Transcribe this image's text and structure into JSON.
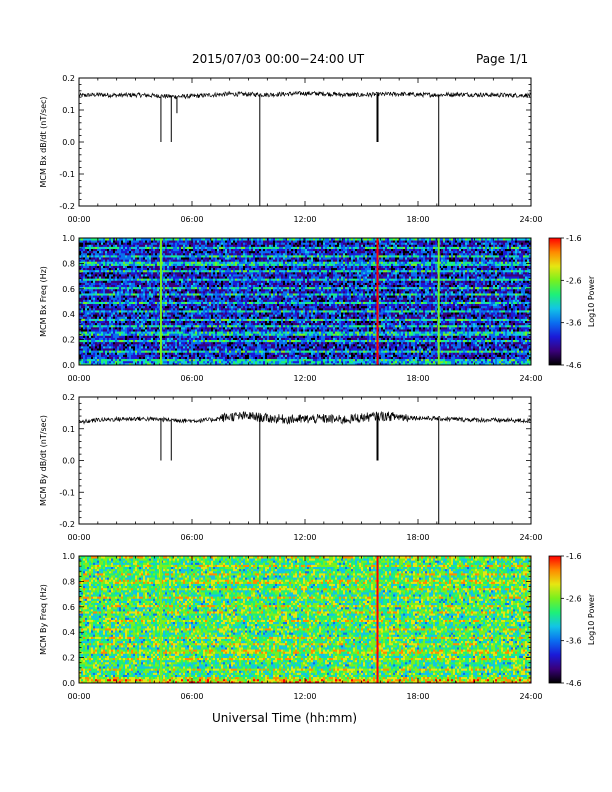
{
  "header": {
    "title": "2015/07/03  00:00−24:00 UT",
    "page": "Page 1/1"
  },
  "x_axis_title": "Universal Time (hh:mm)",
  "colors": {
    "trace": "#000000",
    "scale": [
      "#000000",
      "#3a007a",
      "#1a1ad8",
      "#0a6ef0",
      "#12c4e6",
      "#1ef078",
      "#78f01e",
      "#e6e612",
      "#ff8a00",
      "#ff0000"
    ]
  },
  "chart_data": [
    {
      "type": "line",
      "ylabel": "MCM Bx dB/dt (nT/sec)",
      "xlim": [
        0,
        24
      ],
      "ylim": [
        -0.2,
        0.2
      ],
      "x_ticks": [
        "00:00",
        "06:00",
        "12:00",
        "18:00",
        "24:00"
      ],
      "y_ticks": [
        "-0.2",
        "-0.1",
        "0.0",
        "0.1",
        "0.2"
      ],
      "series": [
        {
          "x": [
            0,
            1,
            2,
            3,
            4,
            5,
            6,
            7,
            8,
            9,
            10,
            11,
            12,
            13,
            14,
            15,
            16,
            17,
            18,
            19,
            20,
            21,
            22,
            23,
            24
          ],
          "y": [
            0.145,
            0.148,
            0.146,
            0.147,
            0.145,
            0.142,
            0.143,
            0.147,
            0.15,
            0.149,
            0.148,
            0.15,
            0.152,
            0.151,
            0.148,
            0.147,
            0.149,
            0.15,
            0.148,
            0.147,
            0.149,
            0.148,
            0.147,
            0.146,
            0.146
          ]
        }
      ],
      "spikes": [
        {
          "x": 4.35,
          "y": 0.0
        },
        {
          "x": 4.9,
          "y": 0.0
        },
        {
          "x": 5.2,
          "y": 0.09
        },
        {
          "x": 9.6,
          "y": -0.2
        },
        {
          "x": 15.85,
          "y": 0.0
        },
        {
          "x": 19.1,
          "y": -0.2
        }
      ]
    },
    {
      "type": "heatmap",
      "ylabel": "MCM Bx Freq (Hz)",
      "xlim": [
        0,
        24
      ],
      "ylim": [
        0,
        1.0
      ],
      "x_ticks": [
        "00:00",
        "06:00",
        "12:00",
        "18:00",
        "24:00"
      ],
      "y_ticks": [
        "0.0",
        "0.2",
        "0.4",
        "0.6",
        "0.8",
        "1.0"
      ],
      "colorbar": {
        "label": "Log10 Power",
        "ticks": [
          "-1.6",
          "-2.6",
          "-3.6",
          "-4.6"
        ],
        "range": [
          -4.6,
          -1.6
        ]
      },
      "band_freqs": [
        0.038,
        0.115,
        0.185,
        0.25,
        0.305,
        0.365,
        0.425,
        0.49,
        0.555,
        0.615,
        0.675,
        0.74,
        0.8,
        0.86,
        0.92,
        0.985
      ],
      "background_log_power": -3.9,
      "band_log_power": -3.2,
      "line_events": [
        {
          "x": 4.35,
          "log_power": -2.8
        },
        {
          "x": 15.85,
          "log_power": -1.6
        },
        {
          "x": 19.1,
          "log_power": -2.6
        }
      ]
    },
    {
      "type": "line",
      "ylabel": "MCM By dB/dt (nT/sec)",
      "xlim": [
        0,
        24
      ],
      "ylim": [
        -0.2,
        0.2
      ],
      "x_ticks": [
        "00:00",
        "06:00",
        "12:00",
        "18:00",
        "24:00"
      ],
      "y_ticks": [
        "-0.2",
        "-0.1",
        "0.0",
        "0.1",
        "0.2"
      ],
      "series": [
        {
          "x": [
            0,
            1,
            2,
            3,
            4,
            5,
            6,
            7,
            8,
            9,
            10,
            11,
            12,
            13,
            14,
            15,
            16,
            17,
            18,
            19,
            20,
            21,
            22,
            23,
            24
          ],
          "y": [
            0.12,
            0.128,
            0.13,
            0.132,
            0.13,
            0.128,
            0.125,
            0.128,
            0.138,
            0.14,
            0.133,
            0.13,
            0.13,
            0.132,
            0.128,
            0.135,
            0.14,
            0.138,
            0.134,
            0.132,
            0.13,
            0.128,
            0.127,
            0.126,
            0.125
          ]
        }
      ],
      "spikes": [
        {
          "x": 4.35,
          "y": 0.0
        },
        {
          "x": 4.9,
          "y": 0.0
        },
        {
          "x": 9.6,
          "y": -0.2
        },
        {
          "x": 15.85,
          "y": 0.0
        },
        {
          "x": 19.1,
          "y": -0.2
        }
      ]
    },
    {
      "type": "heatmap",
      "ylabel": "MCM By Freq (Hz)",
      "xlim": [
        0,
        24
      ],
      "ylim": [
        0,
        1.0
      ],
      "x_ticks": [
        "00:00",
        "06:00",
        "12:00",
        "18:00",
        "24:00"
      ],
      "y_ticks": [
        "0.0",
        "0.2",
        "0.4",
        "0.6",
        "0.8",
        "1.0"
      ],
      "colorbar": {
        "label": "Log10 Power",
        "ticks": [
          "-1.6",
          "-2.6",
          "-3.6",
          "-4.6"
        ],
        "range": [
          -4.6,
          -1.6
        ]
      },
      "band_freqs": [
        0.038,
        0.115,
        0.185,
        0.25,
        0.305,
        0.365,
        0.425,
        0.49,
        0.555,
        0.615,
        0.675,
        0.74,
        0.8,
        0.86,
        0.92,
        0.985
      ],
      "background_log_power": -2.9,
      "band_log_power": -2.5,
      "line_events": [
        {
          "x": 4.35,
          "log_power": -2.6
        },
        {
          "x": 15.85,
          "log_power": -1.6
        }
      ]
    }
  ]
}
